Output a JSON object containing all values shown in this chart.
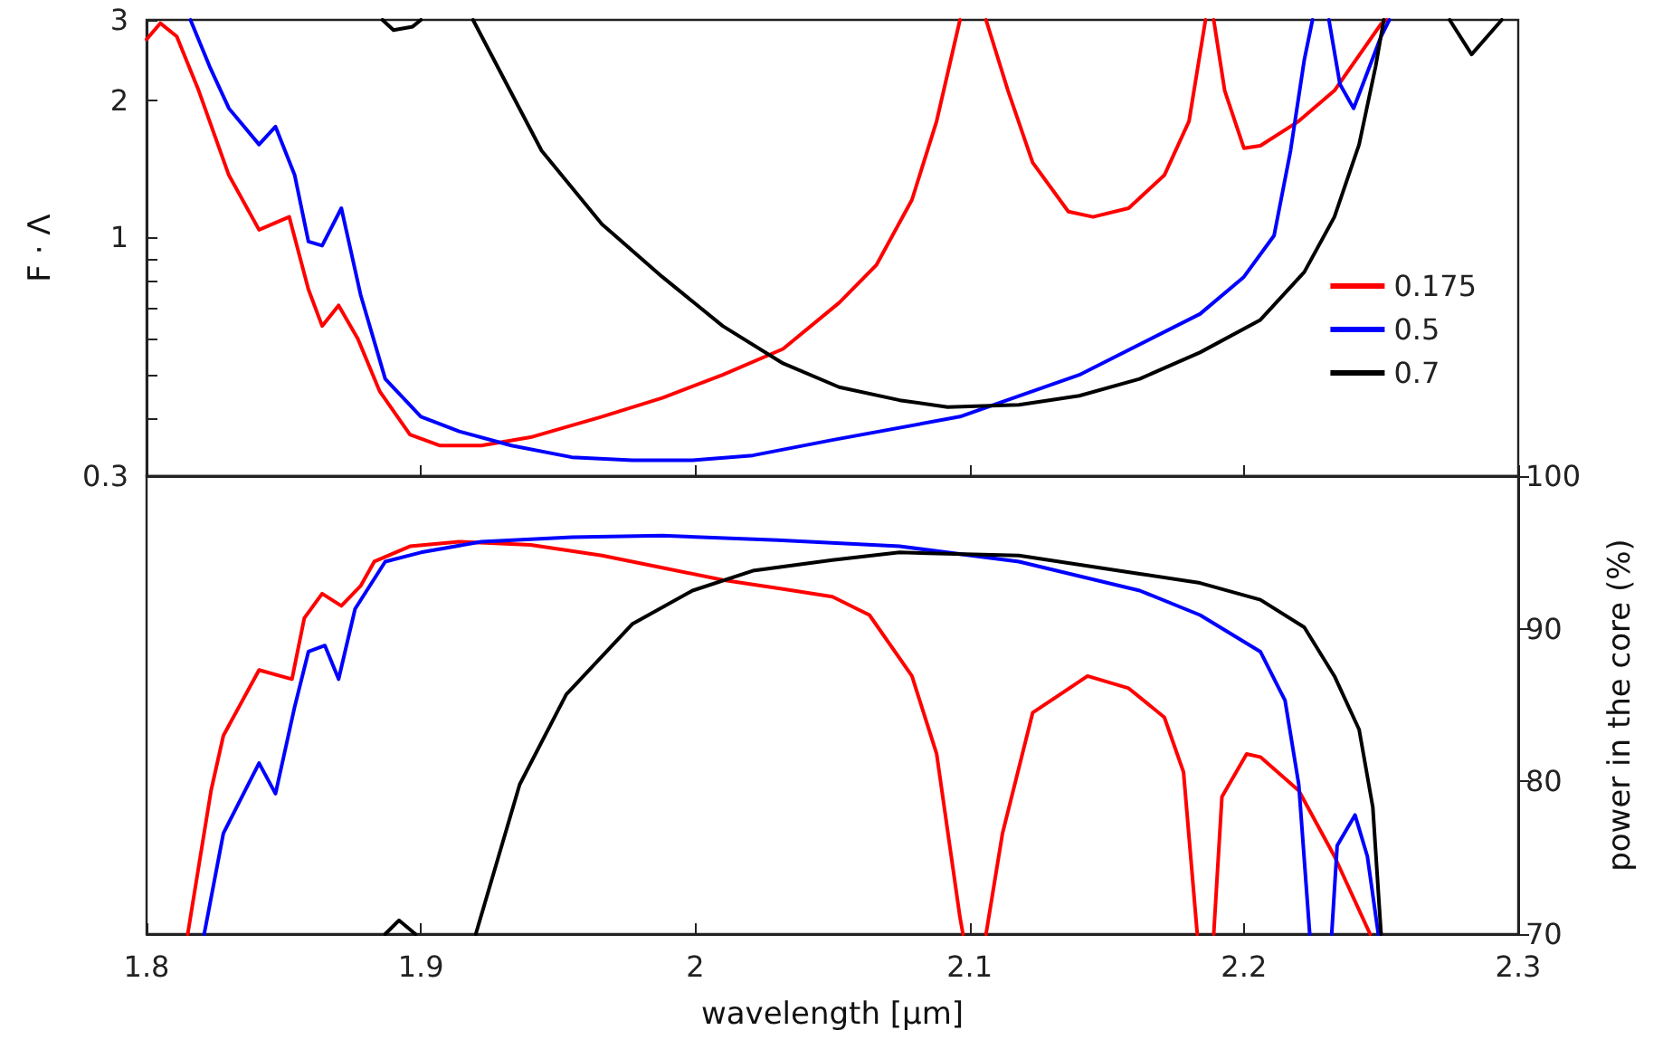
{
  "chart_data": [
    {
      "type": "line",
      "ylabel": "F · Λ",
      "log": "y",
      "xlim": [
        1.8,
        2.3
      ],
      "xticks": [
        1.8,
        1.9,
        2,
        2.1,
        2.2,
        2.3
      ],
      "ylim": [
        0.3,
        3
      ],
      "yticks": [
        0.3,
        {
          "value": 0.4,
          "label": null
        },
        {
          "value": 0.5,
          "label": null
        },
        {
          "value": 0.6,
          "label": null
        },
        {
          "value": 0.7,
          "label": null
        },
        {
          "value": 0.8,
          "label": null
        },
        {
          "value": 0.9,
          "label": null
        },
        1,
        2,
        3
      ],
      "tick_labels": "y",
      "legend": "right",
      "line_style": "solid",
      "marker": "none",
      "series": [
        {
          "name": "0.175",
          "color": "#ff0000",
          "x": [
            1.8,
            1.805,
            1.811,
            1.819,
            1.83,
            1.841,
            1.852,
            1.859,
            1.864,
            1.87,
            1.877,
            1.885,
            1.896,
            1.907,
            1.922,
            1.94,
            1.966,
            1.988,
            2.01,
            2.032,
            2.0525,
            2.066,
            2.079,
            2.088,
            2.0965,
            2.1,
            2.106,
            2.114,
            2.123,
            2.136,
            2.145,
            2.158,
            2.171,
            2.18,
            2.186,
            2.1875,
            2.189,
            2.193,
            2.2,
            2.206,
            2.22,
            2.233,
            2.25,
            2.252
          ],
          "values": [
            2.72,
            2.95,
            2.76,
            2.1,
            1.37,
            1.04,
            1.11,
            0.77,
            0.64,
            0.71,
            0.6,
            0.46,
            0.37,
            0.35,
            0.35,
            0.365,
            0.405,
            0.445,
            0.5,
            0.57,
            0.72,
            0.87,
            1.21,
            1.8,
            3,
            null,
            3,
            2.1,
            1.46,
            1.14,
            1.11,
            1.16,
            1.37,
            1.8,
            3,
            null,
            3,
            2.1,
            1.57,
            1.59,
            1.8,
            2.1,
            2.94,
            3
          ]
        },
        {
          "name": "0.5",
          "color": "#0000ff",
          "x": [
            1.816,
            1.823,
            1.83,
            1.841,
            1.847,
            1.854,
            1.859,
            1.864,
            1.871,
            1.878,
            1.887,
            1.9,
            1.914,
            1.933,
            1.955,
            1.977,
            1.999,
            2.021,
            2.05,
            2.0965,
            2.14,
            2.184,
            2.2,
            2.211,
            2.217,
            2.222,
            2.225,
            2.228,
            2.231,
            2.235,
            2.24,
            2.25,
            2.253
          ],
          "values": [
            3,
            2.37,
            1.92,
            1.6,
            1.75,
            1.37,
            0.98,
            0.96,
            1.16,
            0.75,
            0.49,
            0.405,
            0.376,
            0.35,
            0.33,
            0.325,
            0.325,
            0.333,
            0.36,
            0.405,
            0.5,
            0.68,
            0.82,
            1.01,
            1.55,
            2.45,
            3,
            null,
            3,
            2.17,
            1.92,
            2.76,
            3
          ]
        },
        {
          "name": "0.7",
          "color": "#000000",
          "x": [
            1.886,
            1.89,
            1.897,
            1.9,
            1.91,
            1.919,
            1.944,
            1.966,
            1.988,
            2.01,
            2.032,
            2.0525,
            2.0745,
            2.092,
            2.118,
            2.14,
            2.162,
            2.184,
            2.206,
            2.222,
            2.233,
            2.242,
            2.248,
            2.251,
            2.26,
            2.275,
            2.283,
            2.294
          ],
          "values": [
            3,
            2.85,
            2.9,
            3,
            null,
            3,
            1.55,
            1.07,
            0.82,
            0.64,
            0.53,
            0.47,
            0.44,
            0.425,
            0.43,
            0.45,
            0.49,
            0.56,
            0.66,
            0.84,
            1.11,
            1.6,
            2.37,
            3,
            null,
            3,
            2.52,
            3
          ]
        }
      ]
    },
    {
      "type": "line",
      "xlabel": "wavelength [µm]",
      "y2label": "power in the core (%)",
      "xlim": [
        1.8,
        2.3
      ],
      "xticks": [
        1.8,
        1.9,
        2,
        2.1,
        2.2,
        2.3
      ],
      "y2lim": [
        70,
        100
      ],
      "y2ticks": [
        70,
        80,
        90,
        100
      ],
      "line_style": "solid",
      "marker": "none",
      "series": [
        {
          "color": "#ff0000",
          "axis": "y2",
          "x": [
            1.815,
            1.8235,
            1.828,
            1.841,
            1.853,
            1.8575,
            1.864,
            1.871,
            1.878,
            1.883,
            1.896,
            1.914,
            1.94,
            1.966,
            1.988,
            2.01,
            2.032,
            2.05,
            2.0635,
            2.079,
            2.088,
            2.0965,
            2.0976,
            2.1,
            2.106,
            2.112,
            2.123,
            2.143,
            2.158,
            2.171,
            2.178,
            2.183,
            2.186,
            2.189,
            2.192,
            2.201,
            2.206,
            2.22,
            2.233,
            2.246
          ],
          "values": [
            70,
            79.4,
            83,
            87.3,
            86.7,
            90.7,
            92.3,
            91.5,
            92.8,
            94.4,
            95.4,
            95.7,
            95.5,
            94.8,
            94,
            93.2,
            92.6,
            92.1,
            90.9,
            86.9,
            81.8,
            71.1,
            70,
            null,
            70,
            76.6,
            84.5,
            86.9,
            86.1,
            84.2,
            80.6,
            70,
            null,
            70,
            79,
            81.8,
            81.6,
            79.4,
            75.1,
            70
          ]
        },
        {
          "color": "#0000ff",
          "axis": "y2",
          "x": [
            1.821,
            1.828,
            1.841,
            1.847,
            1.854,
            1.859,
            1.865,
            1.87,
            1.876,
            1.887,
            1.9,
            1.922,
            1.955,
            1.988,
            2.03,
            2.0745,
            2.118,
            2.162,
            2.184,
            2.206,
            2.215,
            2.22,
            2.224,
            2.228,
            2.232,
            2.234,
            2.2405,
            2.245,
            2.249
          ],
          "values": [
            70,
            76.6,
            81.2,
            79.2,
            84.9,
            88.5,
            88.9,
            86.7,
            91.3,
            94.4,
            95,
            95.7,
            96,
            96.1,
            95.8,
            95.4,
            94.4,
            92.5,
            90.9,
            88.5,
            85.3,
            79.8,
            70,
            null,
            70,
            75.8,
            77.8,
            75.1,
            70
          ]
        },
        {
          "color": "#000000",
          "axis": "y2",
          "x": [
            1.887,
            1.892,
            1.898,
            1.91,
            1.92,
            1.936,
            1.953,
            1.977,
            1.999,
            2.021,
            2.05,
            2.0745,
            2.118,
            2.162,
            2.184,
            2.206,
            2.222,
            2.233,
            2.242,
            2.247,
            2.25
          ],
          "values": [
            70,
            70.9,
            70,
            null,
            70,
            79.8,
            85.7,
            90.3,
            92.5,
            93.8,
            94.5,
            95,
            94.8,
            93.6,
            93,
            91.9,
            90.1,
            86.9,
            83.4,
            78.3,
            70
          ]
        }
      ]
    }
  ]
}
